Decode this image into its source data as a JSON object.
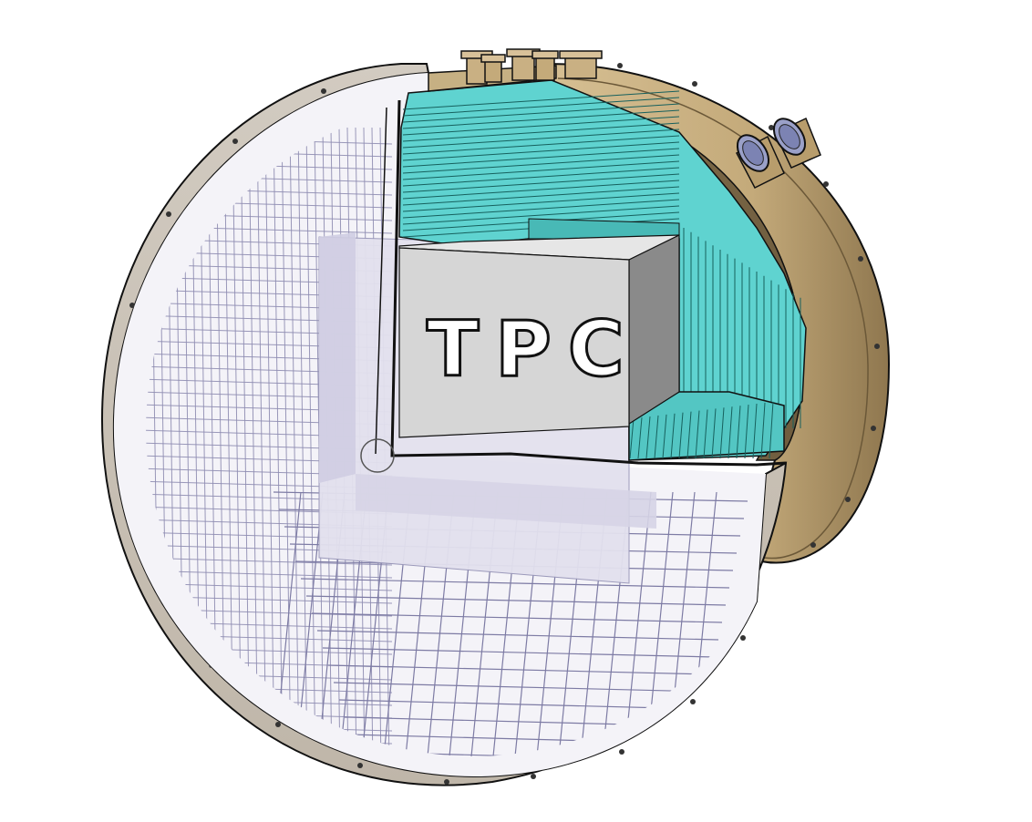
{
  "diagram": {
    "labels": {
      "tpc": "TPC"
    },
    "colors": {
      "background": "#ffffff",
      "vessel_shell": "#c9c0b4",
      "vessel_rim": "#b8ad9e",
      "back_cap": "#c8b085",
      "back_cap_dark": "#a38a60",
      "shielding": "#5fd3d0",
      "shielding_dark": "#2c9a96",
      "tpc_front": "#d6d6d6",
      "tpc_top": "#e4e4e4",
      "tpc_side": "#8c8c8c",
      "wire_frame": "#9a98b8",
      "ghost_block": "#e2e0ec",
      "outline": "#111111"
    },
    "icons": [
      "flange-port",
      "viewport-window",
      "bolt"
    ]
  }
}
